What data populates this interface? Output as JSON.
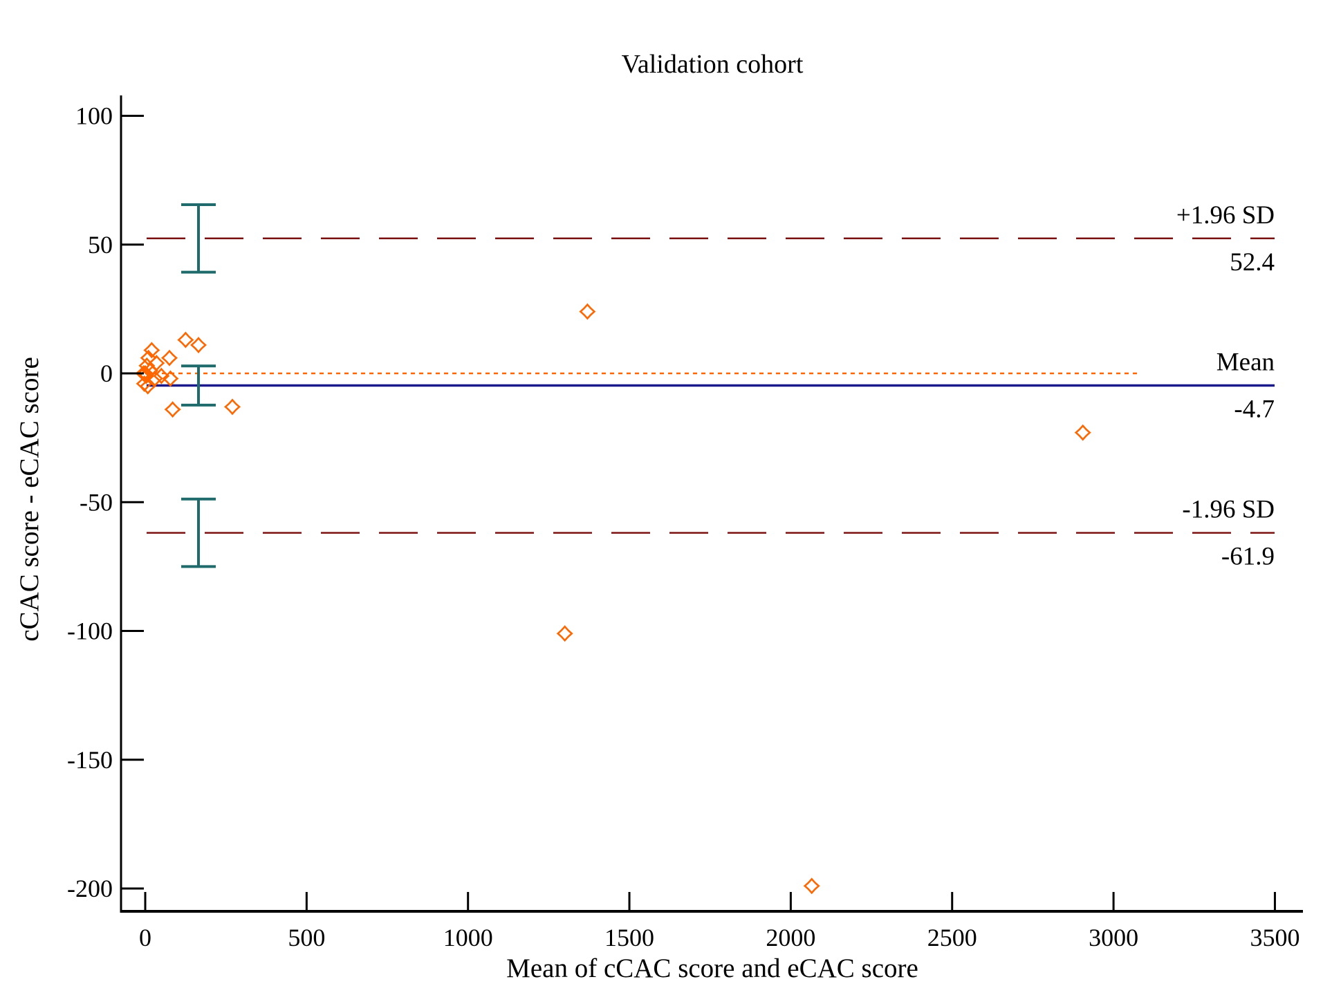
{
  "chart_data": {
    "type": "scatter",
    "title": "Validation cohort",
    "xlabel": "Mean of cCAC score and eCAC score",
    "ylabel": "cCAC score - eCAC score",
    "xlim": [
      -70,
      3500
    ],
    "ylim": [
      -210,
      110
    ],
    "xticks": [
      0,
      500,
      1000,
      1500,
      2000,
      2500,
      3000,
      3500
    ],
    "xtick_labels": [
      "0",
      "500",
      "1000",
      "1500",
      "2000",
      "2500",
      "3000",
      "3500"
    ],
    "yticks": [
      100,
      50,
      0,
      -50,
      -100,
      -150,
      -200
    ],
    "ytick_labels": [
      "100",
      "50",
      "0",
      "-50",
      "-100",
      "-150",
      "-200"
    ],
    "grid": false,
    "points": [
      {
        "x": 1370,
        "y": 24
      },
      {
        "x": 1300,
        "y": -101
      },
      {
        "x": 2065,
        "y": -199
      },
      {
        "x": 2905,
        "y": -23
      },
      {
        "x": 125,
        "y": 13
      },
      {
        "x": 165,
        "y": 11
      },
      {
        "x": 20,
        "y": 9
      },
      {
        "x": 75,
        "y": 6
      },
      {
        "x": 10,
        "y": 6
      },
      {
        "x": 35,
        "y": 4
      },
      {
        "x": 5,
        "y": 3
      },
      {
        "x": 15,
        "y": 1
      },
      {
        "x": 0,
        "y": 0
      },
      {
        "x": -5,
        "y": 0
      },
      {
        "x": 3,
        "y": -1
      },
      {
        "x": 50,
        "y": -1
      },
      {
        "x": 78,
        "y": -2
      },
      {
        "x": 30,
        "y": -2
      },
      {
        "x": -3,
        "y": -4
      },
      {
        "x": 8,
        "y": -5
      },
      {
        "x": 85,
        "y": -14
      },
      {
        "x": 270,
        "y": -13
      }
    ],
    "reference_lines": {
      "zero_line": {
        "y": 0,
        "x_range": [
          0,
          3080
        ],
        "style": "dotted",
        "color": "#ff6600"
      },
      "mean": {
        "label": "Mean",
        "value": -4.7,
        "value_label": "-4.7",
        "style": "solid",
        "color": "#1a1a8c"
      },
      "upper_loa": {
        "label": "+1.96 SD",
        "value": 52.4,
        "value_label": "52.4",
        "style": "dashed",
        "color": "#7a1010"
      },
      "lower_loa": {
        "label": "-1.96 SD",
        "value": -61.9,
        "value_label": "-61.9",
        "style": "dashed",
        "color": "#7a1010"
      }
    },
    "confidence_intervals": [
      {
        "for": "upper_loa",
        "x": 165,
        "low": 39.3,
        "high": 65.5
      },
      {
        "for": "mean",
        "x": 165,
        "low": -12.3,
        "high": 2.9
      },
      {
        "for": "lower_loa",
        "x": 165,
        "low": -75.0,
        "high": -48.8
      }
    ],
    "colors": {
      "points": "#ff6600",
      "ci_bars": "#1f6b6b",
      "axes": "#000000"
    }
  }
}
